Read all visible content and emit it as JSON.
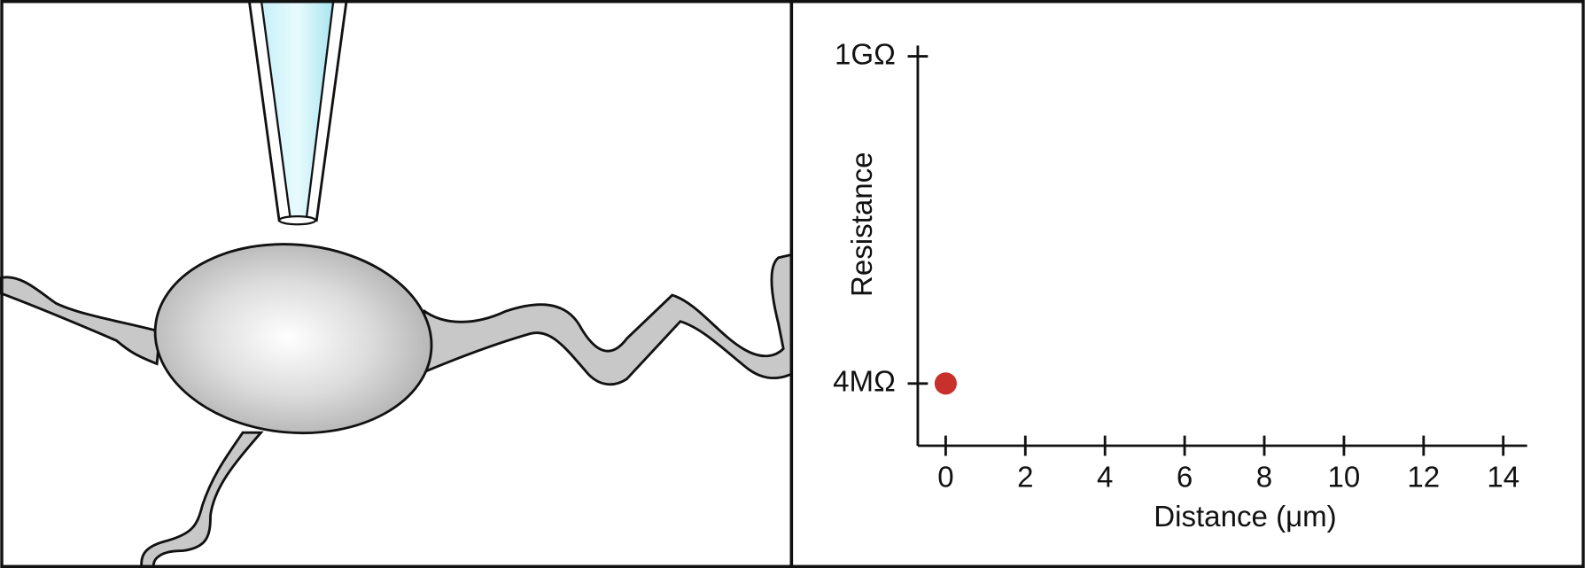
{
  "chart_data": {
    "type": "scatter",
    "xlabel": "Distance (μm)",
    "ylabel": "Resistance",
    "series": [
      {
        "x": [
          0
        ],
        "values": [
          4000000
        ],
        "color": "#c8302c"
      }
    ],
    "xlim": [
      -0.7,
      14.6
    ],
    "xticks": [
      0,
      2,
      4,
      6,
      8,
      10,
      12,
      14
    ],
    "yscale": "log",
    "ylim": [
      1400000,
      1200000000
    ],
    "yticks": [
      {
        "value": 4000000,
        "label": "4MΩ"
      },
      {
        "value": 1000000000,
        "label": "1GΩ"
      }
    ]
  }
}
